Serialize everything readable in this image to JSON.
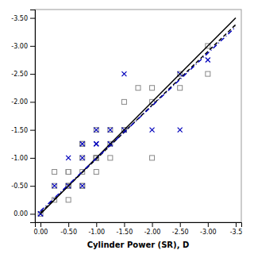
{
  "chart_data": {
    "type": "scatter",
    "xlabel": "Cylinder Power (SR), D",
    "xlim": [
      0.1,
      -3.6
    ],
    "ylim": [
      0.15,
      -3.65
    ],
    "xticks": [
      {
        "value": 0.0,
        "label": "0.00"
      },
      {
        "value": -0.5,
        "label": "-0.50"
      },
      {
        "value": -1.0,
        "label": "-1.00"
      },
      {
        "value": -1.5,
        "label": "-1.50"
      },
      {
        "value": -2.0,
        "label": "-2.00"
      },
      {
        "value": -2.5,
        "label": "-2.50"
      },
      {
        "value": -3.0,
        "label": "-3.00"
      },
      -3.5
    ],
    "yticks": [
      {
        "value": 0.0,
        "label": "0.00"
      },
      {
        "value": -0.5,
        "label": "-0.50"
      },
      {
        "value": -1.0,
        "label": "-1.00"
      },
      {
        "value": -1.5,
        "label": "-1.50"
      },
      {
        "value": -2.0,
        "label": "-2.00"
      },
      {
        "value": -2.5,
        "label": "-2.50"
      },
      {
        "value": -3.0,
        "label": "-3.00"
      },
      {
        "value": -3.5,
        "label": "-3.50"
      }
    ],
    "grid": false,
    "series": [
      {
        "type": "scatter",
        "marker": "square",
        "color": "#888888",
        "x": [
          0.0,
          -0.25,
          -0.25,
          -0.25,
          -0.5,
          -0.5,
          -0.5,
          -0.5,
          -0.5,
          -0.5,
          -0.75,
          -0.75,
          -0.75,
          -0.75,
          -0.75,
          -0.75,
          -1.0,
          -1.0,
          -1.0,
          -1.0,
          -1.0,
          -1.0,
          -1.0,
          -1.25,
          -1.25,
          -1.25,
          -1.5,
          -1.5,
          -1.5,
          -1.75,
          -2.0,
          -2.0,
          -2.0,
          -2.5,
          -2.5,
          -3.0,
          -3.0
        ],
        "values": [
          0.0,
          -0.25,
          -0.5,
          -0.75,
          -0.25,
          -0.5,
          -0.5,
          -0.75,
          -0.75,
          -0.5,
          -0.5,
          -0.75,
          -1.0,
          -1.25,
          -1.25,
          -0.5,
          -0.75,
          -1.0,
          -1.0,
          -1.0,
          -1.0,
          -1.5,
          -1.0,
          -1.0,
          -1.25,
          -1.5,
          -1.5,
          -1.5,
          -2.0,
          -2.25,
          -2.0,
          -2.25,
          -1.0,
          -2.5,
          -2.25,
          -2.5,
          -3.0
        ]
      },
      {
        "type": "scatter",
        "marker": "x",
        "color": "#0000bb",
        "x": [
          0.0,
          0.0,
          -0.25,
          -0.5,
          -0.5,
          -0.75,
          -0.75,
          -0.75,
          -1.0,
          -1.0,
          -1.0,
          -1.25,
          -1.25,
          -1.5,
          -1.5,
          -2.0,
          -2.5,
          -2.5,
          -3.0
        ],
        "values": [
          0.0,
          0.0,
          -0.5,
          -0.5,
          -1.0,
          -0.5,
          -1.0,
          -1.25,
          -1.25,
          -1.25,
          -1.5,
          -1.25,
          -1.5,
          -1.5,
          -2.5,
          -1.5,
          -1.5,
          -2.5,
          -2.75
        ]
      },
      {
        "type": "line",
        "line_style": "solid",
        "color": "#000000",
        "x": [
          0.0,
          -3.5
        ],
        "values": [
          0.0,
          -3.5
        ]
      },
      {
        "type": "line",
        "line_style": "dashed",
        "color": "#000000",
        "x": [
          0.0,
          -3.5
        ],
        "values": [
          -0.02,
          -3.38
        ]
      },
      {
        "type": "line",
        "line_style": "dashdot",
        "color": "#0000bb",
        "x": [
          0.0,
          -3.5
        ],
        "values": [
          -0.05,
          -3.34
        ]
      }
    ]
  }
}
